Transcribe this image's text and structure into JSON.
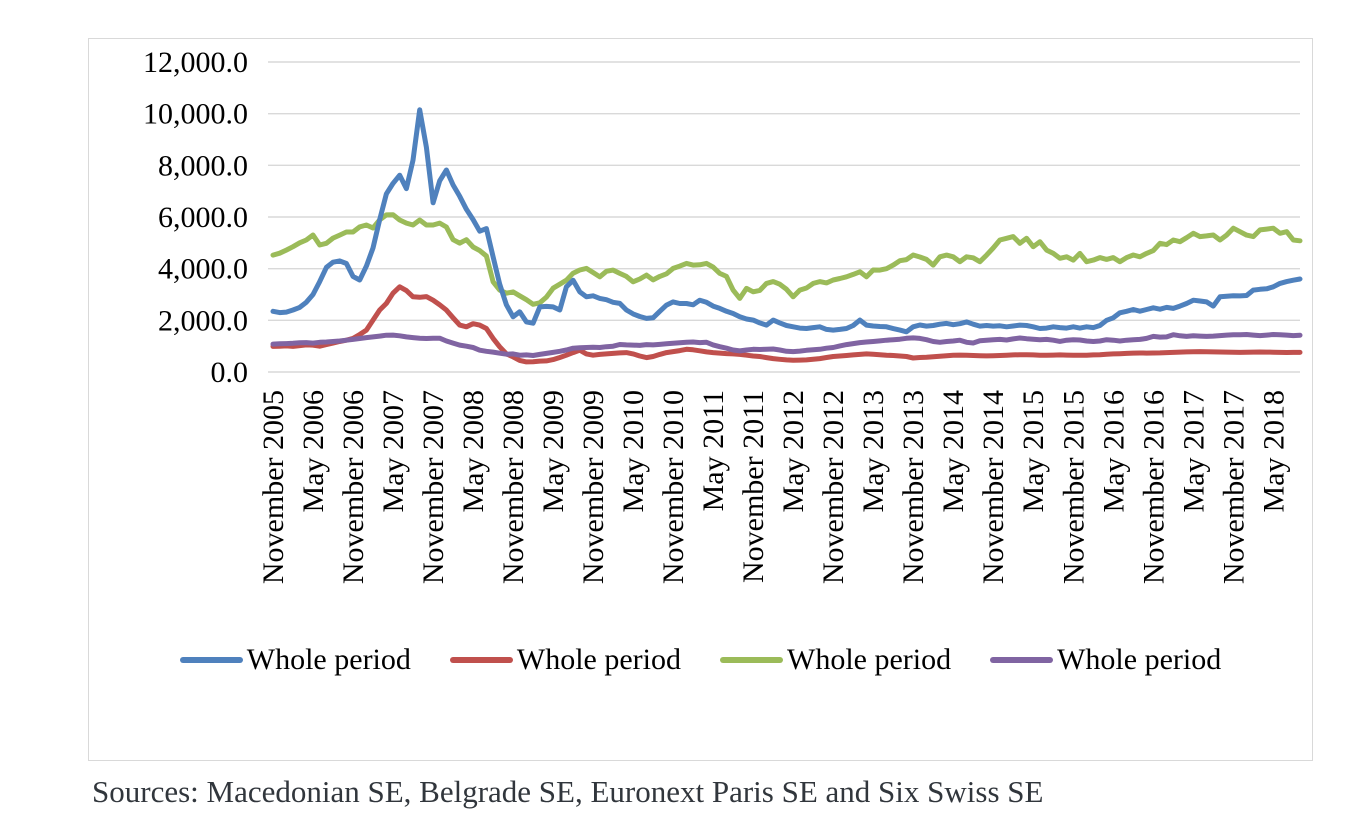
{
  "colors": {
    "background": "#ffffff",
    "chart_border": "#d9d9d9",
    "gridline": "#d9d9d9",
    "axis_text": "#000000",
    "sources_text": "#31363c"
  },
  "sources_note": "Sources: Macedonian SE, Belgrade SE, Euronext Paris SE and Six Swiss SE",
  "chart_data": {
    "type": "line",
    "title": "",
    "x_frequency": "monthly",
    "x_start": "November 2005",
    "x_end": "September 2018",
    "x_tick_every_n_points": 6,
    "x_tick_labels": [
      "November 2005",
      "May 2006",
      "November 2006",
      "May 2007",
      "November 2007",
      "May 2008",
      "November 2008",
      "May 2009",
      "November 2009",
      "May 2010",
      "November 2010",
      "May 2011",
      "November 2011",
      "May 2012",
      "November 2012",
      "May 2013",
      "November 2013",
      "May 2014",
      "November 2014",
      "May 2015",
      "November 2015",
      "May 2016",
      "November 2016",
      "May 2017",
      "November 2017",
      "May 2018"
    ],
    "y_axis": {
      "min": 0,
      "max": 12000,
      "step": 2000,
      "tick_labels": [
        "0.0",
        "2,000.0",
        "4,000.0",
        "6,000.0",
        "8,000.0",
        "10,000.0",
        "12,000.0"
      ]
    },
    "grid": true,
    "legend_position": "bottom",
    "series": [
      {
        "legend_label": "Whole period",
        "color_name": "blue",
        "color": "#4F81BD",
        "values": [
          2350,
          2300,
          2320,
          2400,
          2500,
          2700,
          3000,
          3500,
          4050,
          4250,
          4300,
          4200,
          3700,
          3560,
          4100,
          4800,
          5900,
          6900,
          7300,
          7620,
          7100,
          8200,
          10150,
          8700,
          6550,
          7400,
          7820,
          7240,
          6800,
          6300,
          5900,
          5450,
          5550,
          4460,
          3400,
          2600,
          2135,
          2330,
          1940,
          1890,
          2520,
          2540,
          2520,
          2400,
          3300,
          3550,
          3100,
          2910,
          2950,
          2850,
          2800,
          2700,
          2655,
          2400,
          2250,
          2150,
          2075,
          2100,
          2350,
          2590,
          2715,
          2650,
          2650,
          2600,
          2780,
          2700,
          2550,
          2460,
          2350,
          2265,
          2135,
          2050,
          2010,
          1900,
          1815,
          2010,
          1900,
          1800,
          1750,
          1700,
          1685,
          1720,
          1750,
          1650,
          1620,
          1650,
          1685,
          1800,
          2010,
          1815,
          1780,
          1760,
          1750,
          1680,
          1620,
          1555,
          1750,
          1820,
          1775,
          1800,
          1850,
          1880,
          1830,
          1870,
          1940,
          1850,
          1775,
          1800,
          1775,
          1790,
          1750,
          1780,
          1815,
          1800,
          1750,
          1685,
          1700,
          1750,
          1720,
          1700,
          1750,
          1700,
          1750,
          1720,
          1800,
          2000,
          2100,
          2290,
          2350,
          2420,
          2355,
          2420,
          2485,
          2430,
          2500,
          2460,
          2550,
          2650,
          2780,
          2750,
          2715,
          2550,
          2910,
          2930,
          2950,
          2945,
          2960,
          3170,
          3200,
          3220,
          3300,
          3430,
          3500,
          3555,
          3600
        ]
      },
      {
        "legend_label": "Whole period",
        "color_name": "red",
        "color": "#C0504D",
        "values": [
          990,
          1000,
          1010,
          990,
          1020,
          1050,
          1040,
          1000,
          1060,
          1120,
          1180,
          1230,
          1300,
          1450,
          1620,
          2010,
          2400,
          2655,
          3050,
          3300,
          3150,
          2910,
          2890,
          2920,
          2780,
          2600,
          2395,
          2100,
          1815,
          1750,
          1870,
          1815,
          1685,
          1300,
          975,
          700,
          585,
          450,
          390,
          400,
          420,
          430,
          480,
          560,
          650,
          750,
          845,
          700,
          651,
          680,
          700,
          720,
          740,
          750,
          700,
          620,
          556,
          600,
          680,
          750,
          790,
          830,
          880,
          860,
          820,
          780,
          750,
          730,
          712,
          700,
          680,
          650,
          620,
          600,
          557,
          520,
          490,
          470,
          453,
          460,
          470,
          491,
          520,
          560,
          600,
          619,
          640,
          660,
          680,
          700,
          685,
          670,
          650,
          640,
          619,
          600,
          542,
          560,
          570,
          590,
          610,
          630,
          645,
          655,
          650,
          640,
          630,
          625,
          630,
          640,
          650,
          660,
          670,
          670,
          660,
          650,
          645,
          655,
          660,
          655,
          650,
          645,
          650,
          660,
          670,
          690,
          700,
          710,
          720,
          730,
          735,
          730,
          735,
          740,
          750,
          760,
          770,
          780,
          785,
          790,
          785,
          780,
          775,
          770,
          765,
          760,
          765,
          770,
          775,
          770,
          765,
          760,
          755,
          760,
          760
        ]
      },
      {
        "legend_label": "Whole period",
        "color_name": "green",
        "color": "#9BBB59",
        "values": [
          4525,
          4600,
          4720,
          4850,
          5000,
          5110,
          5305,
          4915,
          4980,
          5185,
          5300,
          5420,
          5420,
          5615,
          5690,
          5575,
          5890,
          6080,
          6090,
          5885,
          5765,
          5690,
          5885,
          5690,
          5690,
          5765,
          5614,
          5120,
          4990,
          5120,
          4840,
          4700,
          4490,
          3490,
          3170,
          3050,
          3100,
          2950,
          2800,
          2620,
          2680,
          2900,
          3245,
          3400,
          3555,
          3825,
          3950,
          4010,
          3850,
          3685,
          3900,
          3945,
          3815,
          3700,
          3490,
          3600,
          3750,
          3565,
          3700,
          3800,
          4010,
          4100,
          4205,
          4140,
          4150,
          4205,
          4060,
          3815,
          3700,
          3170,
          2850,
          3235,
          3105,
          3160,
          3430,
          3500,
          3400,
          3200,
          2910,
          3170,
          3250,
          3430,
          3500,
          3450,
          3560,
          3620,
          3685,
          3780,
          3880,
          3685,
          3950,
          3945,
          4000,
          4140,
          4310,
          4350,
          4530,
          4450,
          4360,
          4140,
          4460,
          4525,
          4460,
          4270,
          4460,
          4420,
          4270,
          4525,
          4800,
          5110,
          5175,
          5240,
          4980,
          5175,
          4850,
          5045,
          4720,
          4590,
          4400,
          4460,
          4330,
          4590,
          4270,
          4330,
          4430,
          4360,
          4430,
          4270,
          4430,
          4530,
          4460,
          4590,
          4700,
          4980,
          4930,
          5110,
          5045,
          5200,
          5370,
          5240,
          5270,
          5305,
          5110,
          5300,
          5565,
          5430,
          5300,
          5240,
          5500,
          5530,
          5565,
          5370,
          5430,
          5110,
          5080
        ]
      },
      {
        "legend_label": "Whole period",
        "color_name": "purple",
        "color": "#8064A2",
        "values": [
          1080,
          1090,
          1100,
          1110,
          1130,
          1140,
          1120,
          1150,
          1160,
          1180,
          1200,
          1230,
          1260,
          1298,
          1330,
          1360,
          1390,
          1425,
          1430,
          1400,
          1360,
          1330,
          1310,
          1298,
          1310,
          1310,
          1200,
          1120,
          1040,
          1000,
          950,
          845,
          800,
          770,
          729,
          690,
          700,
          651,
          660,
          640,
          680,
          720,
          760,
          800,
          850,
          922,
          940,
          950,
          961,
          950,
          980,
          1000,
          1065,
          1050,
          1040,
          1030,
          1060,
          1050,
          1070,
          1090,
          1110,
          1130,
          1150,
          1160,
          1140,
          1150,
          1050,
          980,
          920,
          850,
          815,
          850,
          880,
          870,
          880,
          890,
          850,
          800,
          790,
          810,
          840,
          860,
          880,
          920,
          950,
          1010,
          1060,
          1100,
          1140,
          1160,
          1180,
          1205,
          1230,
          1250,
          1270,
          1305,
          1320,
          1300,
          1250,
          1180,
          1150,
          1180,
          1200,
          1230,
          1150,
          1124,
          1210,
          1230,
          1250,
          1260,
          1240,
          1280,
          1318,
          1290,
          1270,
          1250,
          1260,
          1230,
          1186,
          1230,
          1250,
          1240,
          1200,
          1180,
          1200,
          1250,
          1230,
          1200,
          1230,
          1250,
          1260,
          1300,
          1380,
          1350,
          1360,
          1445,
          1400,
          1380,
          1400,
          1390,
          1380,
          1390,
          1410,
          1430,
          1440,
          1445,
          1450,
          1430,
          1410,
          1430,
          1450,
          1440,
          1430,
          1410,
          1425
        ]
      }
    ]
  }
}
